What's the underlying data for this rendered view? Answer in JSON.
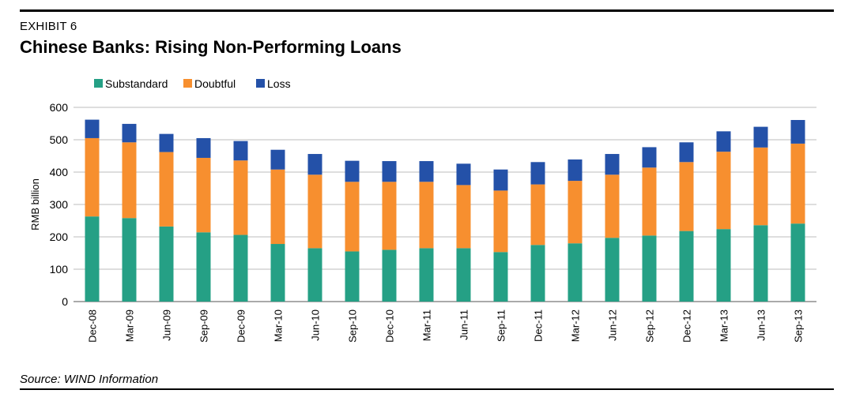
{
  "header": {
    "exhibit": "EXHIBIT 6",
    "title": "Chinese Banks: Rising Non-Performing Loans"
  },
  "footer": {
    "source": "Source: WIND Information"
  },
  "colors": {
    "substandard": "#25a085",
    "doubtful": "#f78f2f",
    "loss": "#2451a8",
    "grid": "#bdbdbd",
    "axis": "#555555"
  },
  "chart_data": {
    "type": "bar",
    "stacked": true,
    "ylabel": "RMB billion",
    "xlabel": "",
    "ylim": [
      0,
      600
    ],
    "yticks": [
      "0",
      "100",
      "200",
      "300",
      "400",
      "500",
      "600"
    ],
    "grid": true,
    "legend_position": "top-left",
    "categories": [
      "Dec-08",
      "Mar-09",
      "Jun-09",
      "Sep-09",
      "Dec-09",
      "Mar-10",
      "Jun-10",
      "Sep-10",
      "Dec-10",
      "Mar-11",
      "Jun-11",
      "Sep-11",
      "Dec-11",
      "Mar-12",
      "Jun-12",
      "Sep-12",
      "Dec-12",
      "Mar-13",
      "Jun-13",
      "Sep-13"
    ],
    "series": [
      {
        "name": "Substandard",
        "color": "#25a085",
        "values": [
          263,
          258,
          232,
          214,
          206,
          178,
          165,
          155,
          160,
          165,
          165,
          153,
          175,
          180,
          197,
          204,
          218,
          224,
          236,
          241
        ]
      },
      {
        "name": "Doubtful",
        "color": "#f78f2f",
        "values": [
          242,
          234,
          230,
          230,
          230,
          230,
          227,
          215,
          210,
          205,
          195,
          190,
          187,
          193,
          195,
          210,
          213,
          239,
          240,
          247
        ]
      },
      {
        "name": "Loss",
        "color": "#2451a8",
        "values": [
          57,
          57,
          56,
          61,
          60,
          61,
          64,
          65,
          64,
          64,
          66,
          65,
          69,
          66,
          64,
          63,
          61,
          63,
          64,
          73
        ]
      }
    ]
  }
}
